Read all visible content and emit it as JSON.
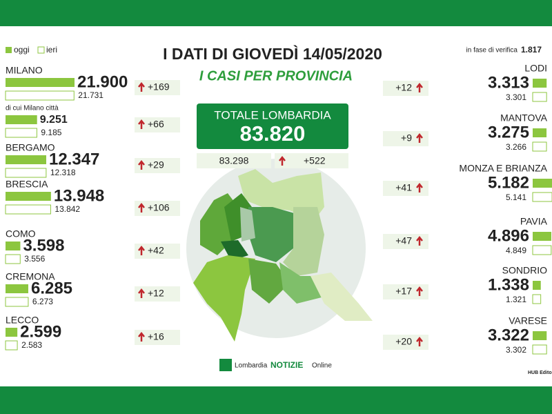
{
  "legend": {
    "today": "oggi",
    "yesterday": "ieri"
  },
  "header": {
    "title": "I DATI DI GIOVEDÌ 14/05/2020",
    "subtitle": "I CASI PER PROVINCIA"
  },
  "pending": {
    "label": "in fase di verifica",
    "value": "1.817"
  },
  "total": {
    "label": "TOTALE LOMBARDIA",
    "today": "83.820",
    "yesterday": "83.298",
    "change": "+522"
  },
  "left": [
    {
      "name": "MILANO",
      "today": "21.900",
      "yesterday": "21.731",
      "change": "+169"
    },
    {
      "name": "di cui Milano città",
      "today": "9.251",
      "yesterday": "9.185",
      "change": "+66"
    },
    {
      "name": "BERGAMO",
      "today": "12.347",
      "yesterday": "12.318",
      "change": "+29"
    },
    {
      "name": "BRESCIA",
      "today": "13.948",
      "yesterday": "13.842",
      "change": "+106"
    },
    {
      "name": "COMO",
      "today": "3.598",
      "yesterday": "3.556",
      "change": "+42"
    },
    {
      "name": "CREMONA",
      "today": "6.285",
      "yesterday": "6.273",
      "change": "+12"
    },
    {
      "name": "LECCO",
      "today": "2.599",
      "yesterday": "2.583",
      "change": "+16"
    }
  ],
  "right": [
    {
      "name": "LODI",
      "today": "3.313",
      "yesterday": "3.301",
      "change": "+12"
    },
    {
      "name": "MANTOVA",
      "today": "3.275",
      "yesterday": "3.266",
      "change": "+9"
    },
    {
      "name": "MONZA E BRIANZA",
      "today": "5.182",
      "yesterday": "5.141",
      "change": "+41"
    },
    {
      "name": "PAVIA",
      "today": "4.896",
      "yesterday": "4.849",
      "change": "+47"
    },
    {
      "name": "SONDRIO",
      "today": "1.338",
      "yesterday": "1.321",
      "change": "+17"
    },
    {
      "name": "VARESE",
      "today": "3.322",
      "yesterday": "3.302",
      "change": "+20"
    }
  ],
  "footer": {
    "brand": [
      "Lombardia",
      "NOTIZIE",
      "Online"
    ],
    "credit": "HUB Edito"
  }
}
